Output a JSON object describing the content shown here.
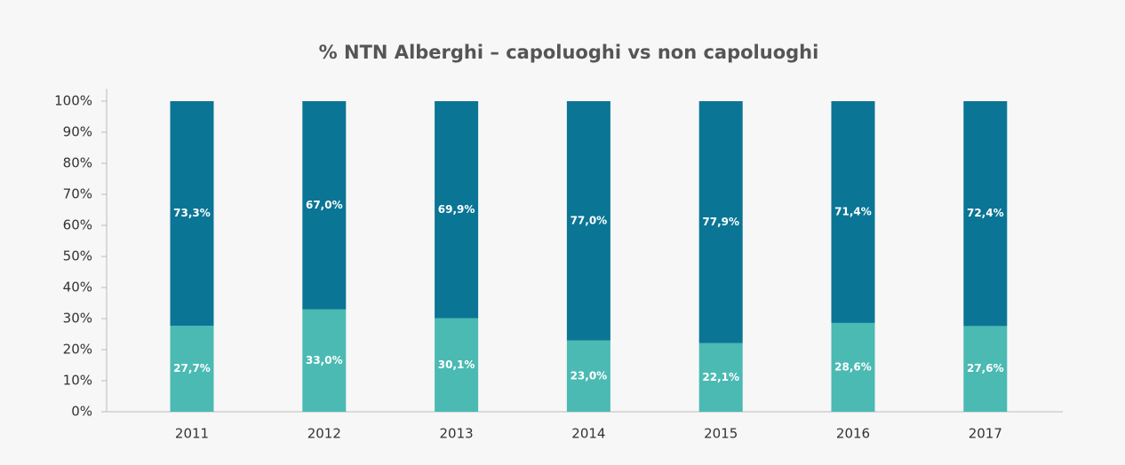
{
  "chart_data": {
    "type": "stacked_bar",
    "title": "% NTN Alberghi – capoluoghi vs non capoluoghi",
    "categories": [
      "2011",
      "2012",
      "2013",
      "2014",
      "2015",
      "2016",
      "2017"
    ],
    "series": [
      {
        "color": "#4bbab3",
        "values": [
          27.7,
          33.0,
          30.1,
          23.0,
          22.1,
          28.6,
          27.6
        ],
        "value_labels": [
          "27,7%",
          "33,0%",
          "30,1%",
          "23,0%",
          "22,1%",
          "28,6%",
          "27,6%"
        ]
      },
      {
        "color": "#0a7595",
        "values": [
          73.3,
          67.0,
          69.9,
          77.0,
          77.9,
          71.4,
          72.4
        ],
        "value_labels": [
          "73,3%",
          "67,0%",
          "69,9%",
          "77,0%",
          "77,9%",
          "71,4%",
          "72,4%"
        ]
      }
    ],
    "ylim": [
      0,
      100
    ],
    "yticks": [
      {
        "value": 0,
        "label": "0%"
      },
      {
        "value": 10,
        "label": "10%"
      },
      {
        "value": 20,
        "label": "20%"
      },
      {
        "value": 30,
        "label": "30%"
      },
      {
        "value": 40,
        "label": "40%"
      },
      {
        "value": 50,
        "label": "50%"
      },
      {
        "value": 60,
        "label": "60%"
      },
      {
        "value": 70,
        "label": "70%"
      },
      {
        "value": 80,
        "label": "80%"
      },
      {
        "value": 90,
        "label": "90%"
      },
      {
        "value": 100,
        "label": "100%"
      }
    ]
  }
}
